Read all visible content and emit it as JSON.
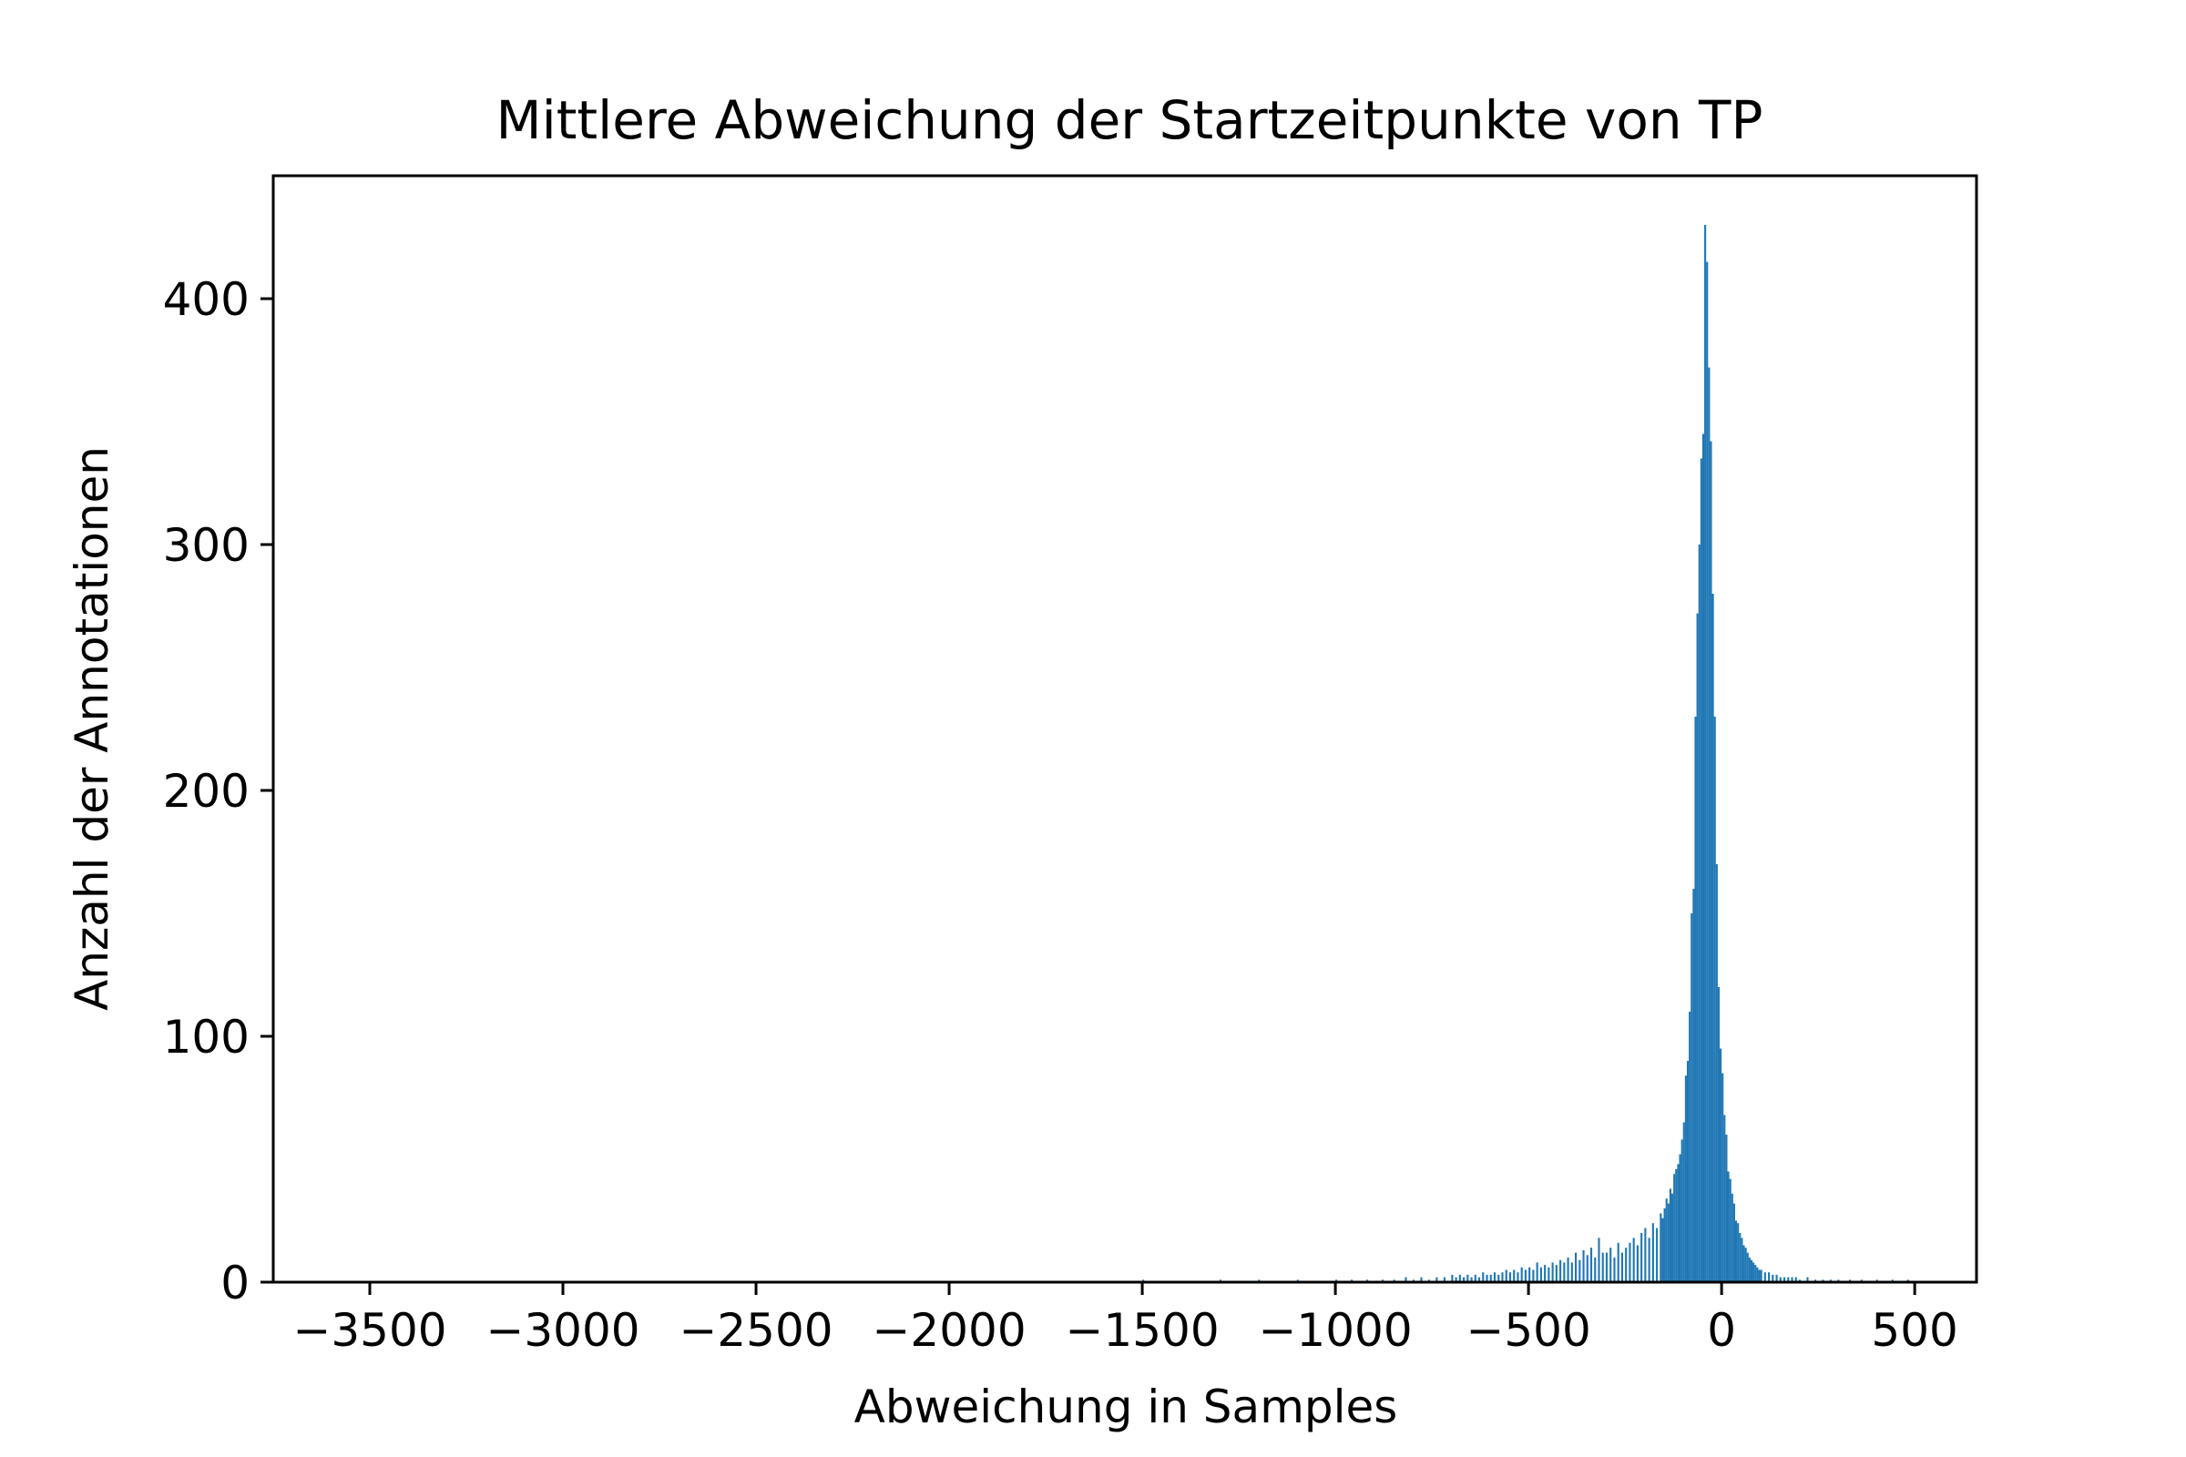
{
  "chart_data": {
    "type": "bar",
    "title": "Mittlere Abweichung der Startzeitpunkte von TP",
    "xlabel": "Abweichung in Samples",
    "ylabel": "Anzahl der Annotationen",
    "xlim": [
      -3750,
      660
    ],
    "ylim": [
      0,
      450
    ],
    "xticks": [
      -3500,
      -3000,
      -2500,
      -2000,
      -1500,
      -1000,
      -500,
      0,
      500
    ],
    "xtick_labels": [
      "−3500",
      "−3000",
      "−2500",
      "−2000",
      "−1500",
      "−1000",
      "−500",
      "0",
      "500"
    ],
    "yticks": [
      0,
      100,
      200,
      300,
      400
    ],
    "ytick_labels": [
      "0",
      "100",
      "200",
      "300",
      "400"
    ],
    "bar_color": "#1f77b4",
    "grid": false,
    "bin_width": 5,
    "bins": [
      [
        -1500,
        1
      ],
      [
        -1300,
        1
      ],
      [
        -1200,
        1
      ],
      [
        -1100,
        1
      ],
      [
        -1000,
        1
      ],
      [
        -960,
        1
      ],
      [
        -920,
        1
      ],
      [
        -880,
        1
      ],
      [
        -850,
        1
      ],
      [
        -820,
        2
      ],
      [
        -800,
        1
      ],
      [
        -780,
        2
      ],
      [
        -760,
        1
      ],
      [
        -740,
        2
      ],
      [
        -720,
        2
      ],
      [
        -700,
        3
      ],
      [
        -690,
        2
      ],
      [
        -680,
        3
      ],
      [
        -670,
        2
      ],
      [
        -660,
        3
      ],
      [
        -650,
        2
      ],
      [
        -640,
        3
      ],
      [
        -630,
        2
      ],
      [
        -620,
        4
      ],
      [
        -610,
        3
      ],
      [
        -600,
        3
      ],
      [
        -590,
        4
      ],
      [
        -580,
        3
      ],
      [
        -570,
        4
      ],
      [
        -560,
        5
      ],
      [
        -550,
        4
      ],
      [
        -540,
        5
      ],
      [
        -530,
        4
      ],
      [
        -520,
        6
      ],
      [
        -510,
        5
      ],
      [
        -500,
        6
      ],
      [
        -490,
        5
      ],
      [
        -480,
        8
      ],
      [
        -470,
        6
      ],
      [
        -460,
        7
      ],
      [
        -450,
        6
      ],
      [
        -440,
        8
      ],
      [
        -430,
        7
      ],
      [
        -420,
        9
      ],
      [
        -410,
        8
      ],
      [
        -400,
        10
      ],
      [
        -390,
        8
      ],
      [
        -380,
        12
      ],
      [
        -370,
        9
      ],
      [
        -360,
        13
      ],
      [
        -350,
        11
      ],
      [
        -340,
        14
      ],
      [
        -330,
        10
      ],
      [
        -320,
        18
      ],
      [
        -310,
        12
      ],
      [
        -300,
        12
      ],
      [
        -290,
        14
      ],
      [
        -280,
        10
      ],
      [
        -270,
        16
      ],
      [
        -260,
        12
      ],
      [
        -250,
        14
      ],
      [
        -240,
        16
      ],
      [
        -230,
        18
      ],
      [
        -220,
        15
      ],
      [
        -210,
        20
      ],
      [
        -200,
        22
      ],
      [
        -190,
        18
      ],
      [
        -180,
        24
      ],
      [
        -170,
        22
      ],
      [
        -160,
        28
      ],
      [
        -155,
        26
      ],
      [
        -150,
        30
      ],
      [
        -145,
        34
      ],
      [
        -140,
        32
      ],
      [
        -135,
        38
      ],
      [
        -130,
        36
      ],
      [
        -125,
        44
      ],
      [
        -120,
        46
      ],
      [
        -115,
        48
      ],
      [
        -110,
        52
      ],
      [
        -105,
        58
      ],
      [
        -100,
        65
      ],
      [
        -95,
        84
      ],
      [
        -90,
        90
      ],
      [
        -85,
        110
      ],
      [
        -80,
        150
      ],
      [
        -75,
        160
      ],
      [
        -70,
        230
      ],
      [
        -65,
        272
      ],
      [
        -60,
        300
      ],
      [
        -55,
        335
      ],
      [
        -50,
        345
      ],
      [
        -45,
        430
      ],
      [
        -40,
        415
      ],
      [
        -35,
        372
      ],
      [
        -30,
        342
      ],
      [
        -25,
        280
      ],
      [
        -20,
        230
      ],
      [
        -15,
        170
      ],
      [
        -10,
        120
      ],
      [
        -5,
        95
      ],
      [
        0,
        85
      ],
      [
        5,
        68
      ],
      [
        10,
        60
      ],
      [
        15,
        45
      ],
      [
        20,
        42
      ],
      [
        25,
        36
      ],
      [
        30,
        32
      ],
      [
        35,
        25
      ],
      [
        40,
        24
      ],
      [
        45,
        20
      ],
      [
        50,
        18
      ],
      [
        55,
        15
      ],
      [
        60,
        14
      ],
      [
        65,
        12
      ],
      [
        70,
        10
      ],
      [
        75,
        9
      ],
      [
        80,
        8
      ],
      [
        85,
        7
      ],
      [
        90,
        6
      ],
      [
        95,
        5
      ],
      [
        100,
        5
      ],
      [
        110,
        4
      ],
      [
        120,
        4
      ],
      [
        130,
        3
      ],
      [
        140,
        3
      ],
      [
        150,
        2
      ],
      [
        160,
        2
      ],
      [
        170,
        2
      ],
      [
        180,
        2
      ],
      [
        190,
        2
      ],
      [
        200,
        1
      ],
      [
        220,
        2
      ],
      [
        240,
        1
      ],
      [
        260,
        1
      ],
      [
        280,
        1
      ],
      [
        300,
        1
      ],
      [
        330,
        1
      ],
      [
        360,
        1
      ],
      [
        400,
        1
      ],
      [
        440,
        1
      ],
      [
        480,
        1
      ]
    ]
  }
}
